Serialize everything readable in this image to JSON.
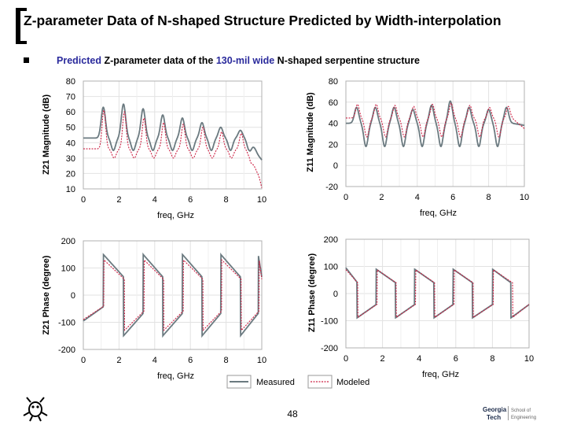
{
  "header": {
    "title": "Z-parameter Data of N-shaped Structure Predicted by Width-interpolation",
    "subtitle_parts": [
      "Predicted",
      " Z-parameter data of the ",
      "130-mil wide",
      " N-shaped serpentine structure"
    ]
  },
  "footer": {
    "page_number": "48"
  },
  "legend": {
    "measured": "Measured",
    "modeled": "Modeled"
  },
  "colors": {
    "measured": "#6b7a80",
    "modeled": "#cc2244",
    "highlight": "#2a2a9c",
    "grid": "#e2e2e2"
  },
  "chart_data": [
    {
      "id": "z21-magnitude",
      "type": "line",
      "xlabel": "freq, GHz",
      "ylabel": "Z21 Magnitude (dB)",
      "xlim": [
        0,
        10
      ],
      "ylim": [
        10,
        80
      ],
      "xticks": [
        "0",
        "2",
        "4",
        "6",
        "8",
        "10"
      ],
      "yticks": [
        "80",
        "70",
        "60",
        "50",
        "40",
        "30",
        "20",
        "10"
      ],
      "grid": true,
      "series": [
        {
          "role": "measured",
          "name": "Measured",
          "base": 43,
          "depth": 8,
          "peaks": [
            [
              1.12,
              63
            ],
            [
              2.25,
              65
            ],
            [
              3.35,
              62
            ],
            [
              4.45,
              58
            ],
            [
              5.55,
              56
            ],
            [
              6.65,
              53
            ],
            [
              7.7,
              50
            ],
            [
              8.8,
              48
            ],
            [
              9.8,
              42
            ]
          ],
          "width": 0.12,
          "end": 29
        },
        {
          "role": "modeled",
          "name": "Modeled",
          "base": 36,
          "depth": 6,
          "peaks": [
            [
              1.15,
              61
            ],
            [
              2.3,
              60
            ],
            [
              3.4,
              56
            ],
            [
              4.5,
              53
            ],
            [
              5.6,
              52
            ],
            [
              6.7,
              50
            ],
            [
              7.75,
              47
            ],
            [
              8.85,
              46
            ],
            [
              9.85,
              38
            ]
          ],
          "width": 0.1,
          "end": 10
        }
      ]
    },
    {
      "id": "z11-magnitude",
      "type": "line",
      "xlabel": "freq, GHz",
      "ylabel": "Z11 Magnitude (dB)",
      "xlim": [
        0,
        10
      ],
      "ylim": [
        -20,
        80
      ],
      "xticks": [
        "0",
        "2",
        "4",
        "6",
        "8",
        "10"
      ],
      "yticks": [
        "80",
        "60",
        "40",
        "20",
        "0",
        "-20"
      ],
      "grid": true,
      "series": [
        {
          "role": "measured",
          "name": "Measured",
          "base": 40,
          "depth": 22,
          "peaks": [
            [
              0.6,
              55
            ],
            [
              1.65,
              55
            ],
            [
              2.7,
              55
            ],
            [
              3.75,
              53
            ],
            [
              4.8,
              57
            ],
            [
              5.85,
              61
            ],
            [
              6.9,
              55
            ],
            [
              8.0,
              53
            ],
            [
              9.0,
              55
            ]
          ],
          "width": 0.12,
          "end": 38
        },
        {
          "role": "modeled",
          "name": "Modeled",
          "base": 45,
          "depth": 18,
          "peaks": [
            [
              0.65,
              58
            ],
            [
              1.7,
              58
            ],
            [
              2.75,
              57
            ],
            [
              3.8,
              56
            ],
            [
              4.85,
              58
            ],
            [
              5.9,
              59
            ],
            [
              6.95,
              57
            ],
            [
              8.05,
              55
            ],
            [
              9.1,
              56
            ]
          ],
          "width": 0.1,
          "end": 35
        }
      ]
    },
    {
      "id": "z21-phase",
      "type": "line",
      "xlabel": "freq, GHz",
      "ylabel": "Z21 Phase (degree)",
      "xlim": [
        0,
        10
      ],
      "ylim": [
        -200,
        200
      ],
      "xticks": [
        "0",
        "2",
        "4",
        "6",
        "8",
        "10"
      ],
      "yticks": [
        "200",
        "100",
        "0",
        "-100",
        "-200"
      ],
      "grid": true,
      "series": [
        {
          "role": "measured",
          "name": "Measured",
          "jumps": [
            1.12,
            2.25,
            3.35,
            4.45,
            5.55,
            6.65,
            7.7,
            8.8,
            9.8
          ],
          "hi": 150,
          "lo": -150,
          "start": -95
        },
        {
          "role": "modeled",
          "name": "Modeled",
          "jumps": [
            1.15,
            2.3,
            3.4,
            4.5,
            5.6,
            6.7,
            7.75,
            8.85,
            9.85
          ],
          "hi": 130,
          "lo": -130,
          "start": -90
        }
      ]
    },
    {
      "id": "z11-phase",
      "type": "line",
      "xlabel": "freq, GHz",
      "ylabel": "Z11 Phase (degree)",
      "xlim": [
        0,
        10
      ],
      "ylim": [
        -200,
        200
      ],
      "xticks": [
        "0",
        "2",
        "4",
        "6",
        "8",
        "10"
      ],
      "yticks": [
        "200",
        "100",
        "0",
        "-100",
        "-200"
      ],
      "grid": true,
      "series": [
        {
          "role": "measured",
          "name": "Measured",
          "jumps": [
            0.6,
            1.65,
            2.7,
            3.75,
            4.8,
            5.85,
            6.9,
            8.0,
            9.0
          ],
          "hi": 90,
          "lo": -90,
          "start": 95
        },
        {
          "role": "modeled",
          "name": "Modeled",
          "jumps": [
            0.65,
            1.7,
            2.75,
            3.8,
            4.85,
            5.9,
            6.95,
            8.05,
            9.1
          ],
          "hi": 88,
          "lo": -88,
          "start": 88
        }
      ]
    }
  ]
}
